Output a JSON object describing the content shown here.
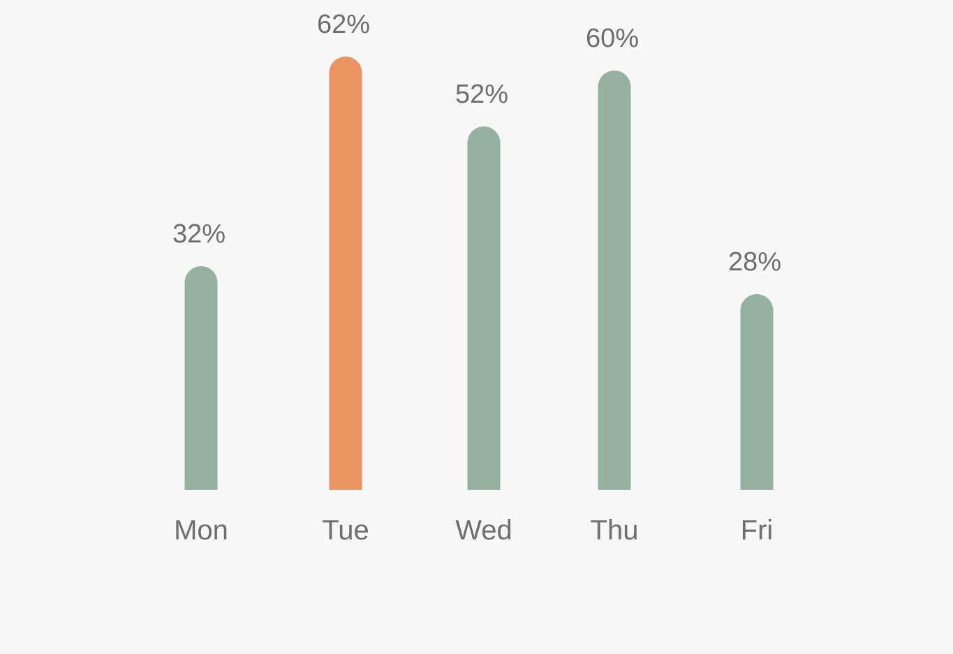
{
  "chart_data": {
    "type": "bar",
    "categories": [
      "Mon",
      "Tue",
      "Wed",
      "Thu",
      "Fri"
    ],
    "values": [
      32,
      62,
      52,
      60,
      28
    ],
    "value_labels": [
      "32%",
      "62%",
      "52%",
      "60%",
      "28%"
    ],
    "highlight_category": "Tue",
    "ylim": [
      0,
      100
    ],
    "grid": false,
    "legend": "none",
    "title": "",
    "xlabel": "",
    "ylabel": ""
  },
  "colors": {
    "bar": "#95b1a0",
    "highlight": "#eb9462",
    "text": "#6e6e6e",
    "background": "#f7f7f7"
  }
}
